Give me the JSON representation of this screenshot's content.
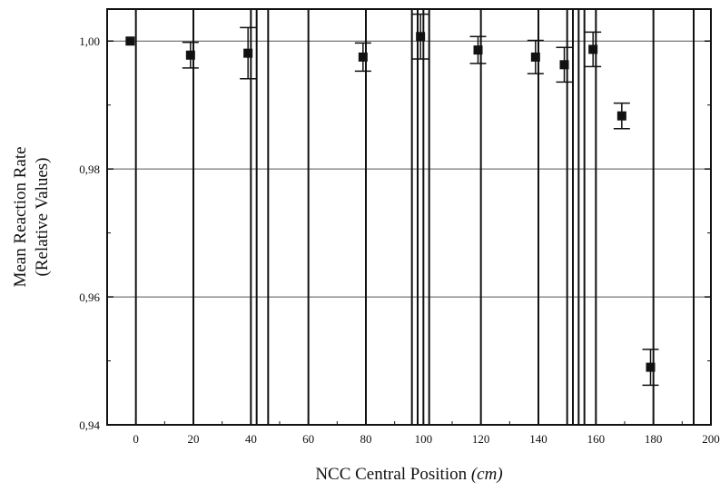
{
  "chart_data": {
    "type": "scatter",
    "xlabel": "NCC Central Position",
    "xlabel_unit": "(cm)",
    "ylabel_line1": "Mean Reaction Rate",
    "ylabel_line2": "(Relative Values)",
    "xlim": [
      -10,
      200
    ],
    "ylim": [
      0.94,
      1.005
    ],
    "x_ticks": [
      0,
      20,
      40,
      60,
      80,
      100,
      120,
      140,
      160,
      180,
      200
    ],
    "x_tick_labels": [
      "0",
      "20",
      "40",
      "60",
      "80",
      "100",
      "120",
      "140",
      "160",
      "180",
      "200"
    ],
    "y_ticks": [
      0.94,
      0.96,
      0.98,
      1.0
    ],
    "y_tick_labels": [
      "0,94",
      "0,96",
      "0,98",
      "1,00"
    ],
    "grid": true,
    "vertical_lines": [
      0,
      20,
      40,
      42,
      46,
      60,
      80,
      96,
      98,
      100,
      102,
      120,
      140,
      150,
      152,
      154,
      156,
      160,
      180,
      194
    ],
    "points": [
      {
        "x": -2,
        "y": 1.0,
        "err": 0.0
      },
      {
        "x": 19,
        "y": 0.9978,
        "err": 0.002
      },
      {
        "x": 39,
        "y": 0.9981,
        "err": 0.004
      },
      {
        "x": 79,
        "y": 0.9975,
        "err": 0.0022
      },
      {
        "x": 99,
        "y": 1.0007,
        "err": 0.0035
      },
      {
        "x": 119,
        "y": 0.9986,
        "err": 0.0021
      },
      {
        "x": 139,
        "y": 0.9975,
        "err": 0.0026
      },
      {
        "x": 149,
        "y": 0.9963,
        "err": 0.0027
      },
      {
        "x": 159,
        "y": 0.9987,
        "err": 0.0027
      },
      {
        "x": 169,
        "y": 0.9883,
        "err": 0.002
      },
      {
        "x": 179,
        "y": 0.949,
        "err": 0.0028
      }
    ]
  }
}
